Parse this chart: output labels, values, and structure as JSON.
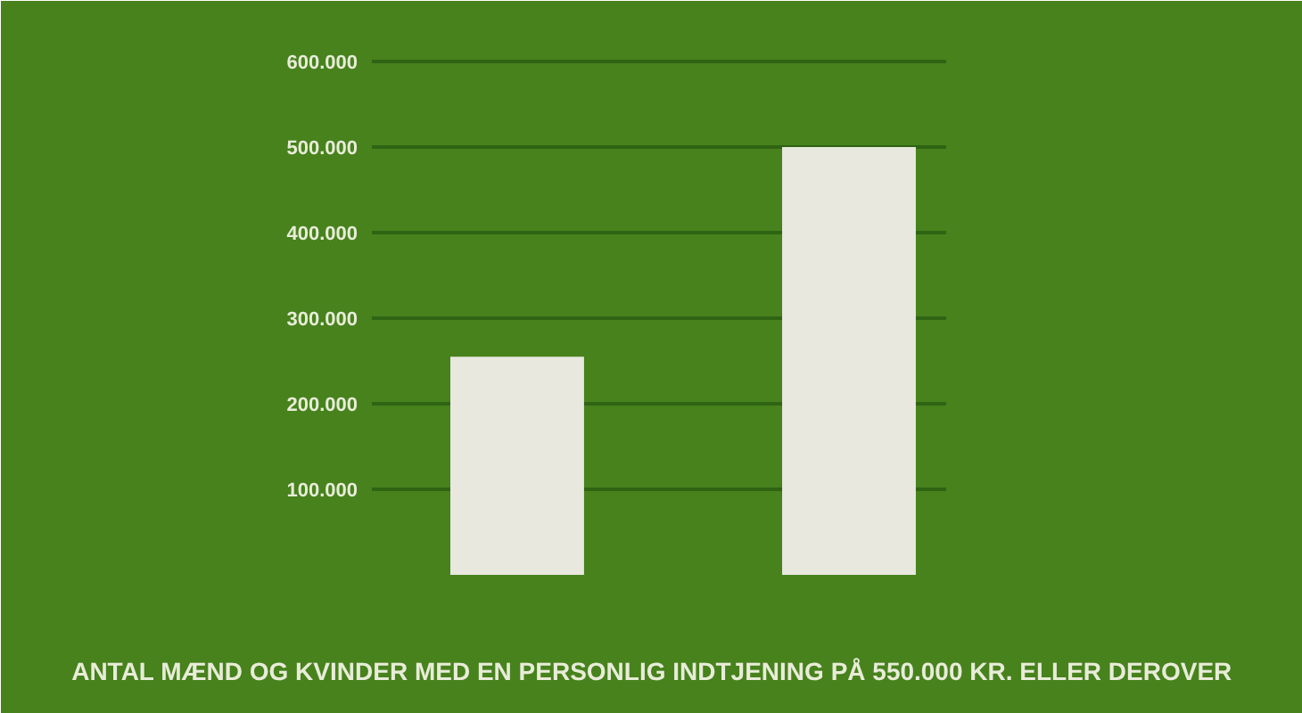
{
  "chart_data": {
    "type": "bar",
    "title": "ANTAL MÆND OG KVINDER MED EN PERSONLIG INDTJENING PÅ 550.000 KR. ELLER DEROVER",
    "categories": [
      null,
      null
    ],
    "values": [
      255000,
      500000
    ],
    "color": "#e9e8df",
    "ylim": [
      0,
      600000
    ],
    "yticks": [
      {
        "value": 100000,
        "label": "100.000"
      },
      {
        "value": 200000,
        "label": "200.000"
      },
      {
        "value": 300000,
        "label": "300.000"
      },
      {
        "value": 400000,
        "label": "400.000"
      },
      {
        "value": 500000,
        "label": "500.000"
      },
      {
        "value": 600000,
        "label": "600.000"
      }
    ],
    "grid": "y",
    "tick_labels": "y"
  }
}
